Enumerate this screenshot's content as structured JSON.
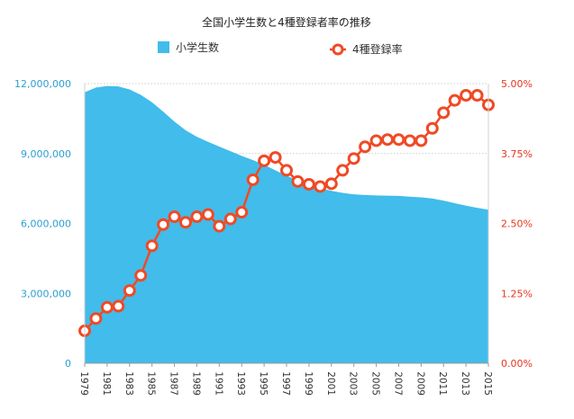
{
  "chart_data": {
    "type": "area+line",
    "title": "全国小学生数と4種登録者率の推移",
    "legend": [
      {
        "name": "小学生数",
        "marker": "square",
        "color": "#41bceb"
      },
      {
        "name": "4種登録率",
        "marker": "circle",
        "color": "#ef4a25"
      }
    ],
    "legend_position": "top",
    "x": [
      1979,
      1980,
      1981,
      1982,
      1983,
      1984,
      1985,
      1986,
      1987,
      1988,
      1989,
      1990,
      1991,
      1992,
      1993,
      1994,
      1995,
      1996,
      1997,
      1998,
      1999,
      2000,
      2001,
      2002,
      2003,
      2004,
      2005,
      2006,
      2007,
      2008,
      2009,
      2010,
      2011,
      2012,
      2013,
      2014,
      2015
    ],
    "x_tick_labels": [
      "1979",
      "1981",
      "1983",
      "1985",
      "1987",
      "1989",
      "1991",
      "1993",
      "1995",
      "1997",
      "1999",
      "2001",
      "2003",
      "2005",
      "2007",
      "2009",
      "2011",
      "2013",
      "2015"
    ],
    "left_axis": {
      "range": [
        0,
        12000000
      ],
      "ticks": [
        "0",
        "3,000,000",
        "6,000,000",
        "9,000,000",
        "12,000,000"
      ],
      "color": "#2d9fd0"
    },
    "right_axis": {
      "range": [
        0,
        5.0
      ],
      "unit": "%",
      "ticks": [
        "0.00%",
        "1.25%",
        "2.50%",
        "3.75%",
        "5.00%"
      ],
      "color": "#e8341c"
    },
    "series": [
      {
        "name": "小学生数",
        "type": "area",
        "axis": "left",
        "color": "#41bceb",
        "values": [
          11630000,
          11830000,
          11900000,
          11880000,
          11750000,
          11520000,
          11200000,
          10800000,
          10370000,
          10000000,
          9720000,
          9500000,
          9300000,
          9100000,
          8900000,
          8720000,
          8520000,
          8280000,
          8050000,
          7850000,
          7670000,
          7520000,
          7400000,
          7310000,
          7250000,
          7220000,
          7200000,
          7190000,
          7180000,
          7150000,
          7120000,
          7070000,
          6980000,
          6870000,
          6760000,
          6670000,
          6590000
        ]
      },
      {
        "name": "4種登録率",
        "type": "line",
        "axis": "right",
        "color": "#ef4a25",
        "values": [
          0.58,
          0.8,
          1.0,
          1.02,
          1.3,
          1.57,
          2.1,
          2.48,
          2.62,
          2.52,
          2.62,
          2.66,
          2.45,
          2.58,
          2.7,
          3.28,
          3.62,
          3.68,
          3.45,
          3.25,
          3.2,
          3.16,
          3.21,
          3.45,
          3.66,
          3.87,
          3.98,
          4.0,
          4.0,
          3.98,
          3.98,
          4.2,
          4.48,
          4.7,
          4.79,
          4.79,
          4.62
        ]
      }
    ],
    "grid": {
      "horizontal": true,
      "vertical": false,
      "style": "dotted"
    }
  }
}
